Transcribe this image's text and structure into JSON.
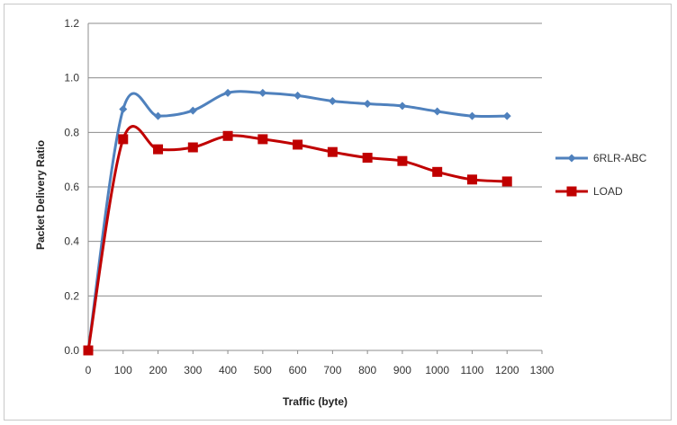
{
  "chart_data": {
    "type": "line",
    "title": "",
    "xlabel": "Traffic (byte)",
    "ylabel": "Packet Delivery Ratio",
    "xlim": [
      0,
      1300
    ],
    "ylim": [
      0,
      1.2
    ],
    "x_ticks": [
      0,
      100,
      200,
      300,
      400,
      500,
      600,
      700,
      800,
      900,
      1000,
      1100,
      1200,
      1300
    ],
    "y_ticks": [
      "0.0",
      "0.2",
      "0.4",
      "0.6",
      "0.8",
      "1.0",
      "1.2"
    ],
    "grid": "horizontal",
    "legend_position": "right",
    "series": [
      {
        "name": "6RLR-ABC",
        "color": "#4f81bd",
        "marker": "diamond",
        "x": [
          0,
          100,
          200,
          300,
          400,
          500,
          600,
          700,
          800,
          900,
          1000,
          1100,
          1200
        ],
        "values": [
          0.0,
          0.885,
          0.86,
          0.88,
          0.945,
          0.945,
          0.935,
          0.915,
          0.905,
          0.897,
          0.877,
          0.86,
          0.86
        ]
      },
      {
        "name": "LOAD",
        "color": "#c00000",
        "marker": "square",
        "x": [
          0,
          100,
          200,
          300,
          400,
          500,
          600,
          700,
          800,
          900,
          1000,
          1100,
          1200
        ],
        "values": [
          0.0,
          0.775,
          0.738,
          0.745,
          0.787,
          0.775,
          0.755,
          0.728,
          0.707,
          0.695,
          0.655,
          0.627,
          0.62
        ]
      }
    ]
  }
}
